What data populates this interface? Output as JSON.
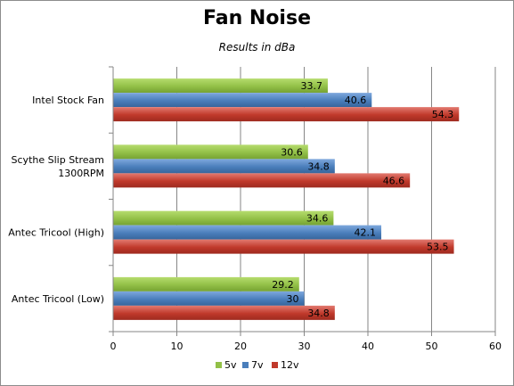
{
  "chart_data": {
    "type": "bar",
    "orientation": "horizontal",
    "title": "Fan Noise",
    "subtitle": "Results in dBa",
    "categories": [
      [
        "Intel Stock Fan"
      ],
      [
        "Scythe Slip Stream",
        "1300RPM"
      ],
      [
        "Antec Tricool (High)"
      ],
      [
        "Antec Tricool (Low)"
      ]
    ],
    "series": [
      {
        "name": "5v",
        "color": "#92c047",
        "values": [
          33.7,
          30.6,
          34.6,
          29.2
        ]
      },
      {
        "name": "7v",
        "color": "#4a7ebb",
        "values": [
          40.6,
          34.8,
          42.1,
          30
        ]
      },
      {
        "name": "12v",
        "color": "#c0392b",
        "values": [
          54.3,
          46.6,
          53.5,
          34.8
        ]
      }
    ],
    "xlim": [
      0,
      60
    ],
    "xticks": [
      0,
      10,
      20,
      30,
      40,
      50,
      60
    ],
    "grid": true,
    "legend_position": "bottom"
  }
}
